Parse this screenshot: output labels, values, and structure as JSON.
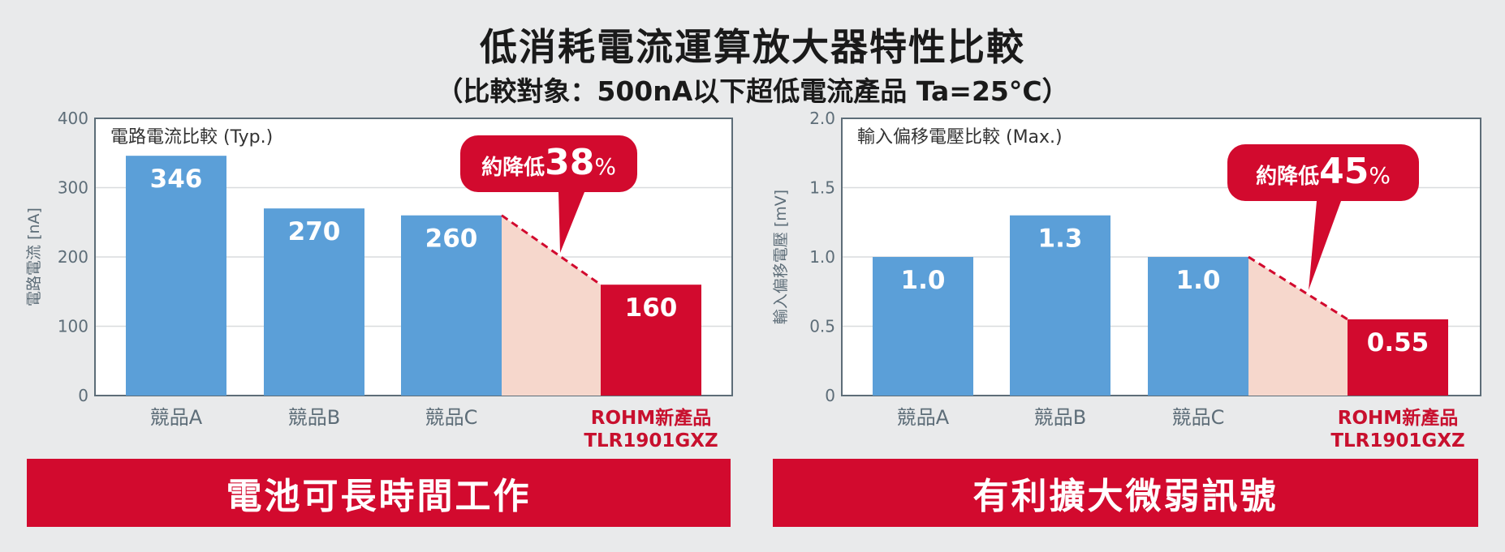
{
  "header": {
    "title": "低消耗電流運算放大器特性比較",
    "subtitle": "（比較對象：500nA以下超低電流產品 Ta=25°C）"
  },
  "colors": {
    "competitor_bar": "#5b9fd8",
    "rohm_bar": "#d20a2e",
    "reduction_area": "#f6d7cc",
    "callout": "#d20a2e",
    "rohm_label": "#c8102e"
  },
  "chart_data": [
    {
      "type": "bar",
      "title": "電路電流比較 (Typ.)",
      "ylabel": "電路電流 [nA]",
      "ylim": [
        0,
        400
      ],
      "yticks": [
        "0",
        "100",
        "200",
        "300",
        "400"
      ],
      "categories": [
        "競品A",
        "競品B",
        "競品C",
        "ROHM新產品\nTLR1901GXZ"
      ],
      "values": [
        346,
        270,
        260,
        160
      ],
      "value_labels": [
        "346",
        "270",
        "260",
        "160"
      ],
      "callout": {
        "prefix": "約降低",
        "number": "38",
        "unit": "%"
      }
    },
    {
      "type": "bar",
      "title": "輸入偏移電壓比較 (Max.)",
      "ylabel": "輸入偏移電壓 [mV]",
      "ylim": [
        0,
        2.0
      ],
      "yticks": [
        "0",
        "0.5",
        "1.0",
        "1.5",
        "2.0"
      ],
      "categories": [
        "競品A",
        "競品B",
        "競品C",
        "ROHM新產品\nTLR1901GXZ"
      ],
      "values": [
        1.0,
        1.3,
        1.0,
        0.55
      ],
      "value_labels": [
        "1.0",
        "1.3",
        "1.0",
        "0.55"
      ],
      "callout": {
        "prefix": "約降低",
        "number": "45",
        "unit": "%"
      }
    }
  ],
  "banners": {
    "left": "電池可長時間工作",
    "right": "有利擴大微弱訊號"
  }
}
